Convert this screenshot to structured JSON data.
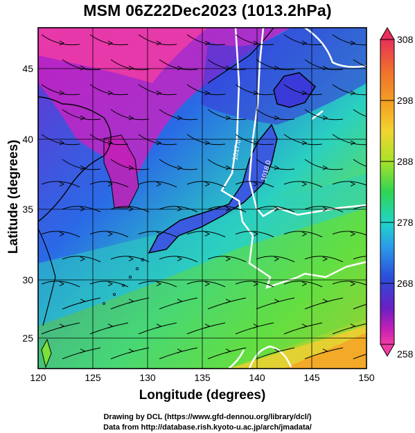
{
  "title": "MSM 06Z22Dec2023 (1013.2hPa)",
  "xlabel": "Longitude (degrees)",
  "ylabel": "Latitude  (degrees)",
  "x_ticks": [
    "120",
    "125",
    "130",
    "135",
    "140",
    "145",
    "150"
  ],
  "y_ticks": [
    "25",
    "30",
    "35",
    "40",
    "45"
  ],
  "colorbar": {
    "ticks": [
      "308",
      "298",
      "288",
      "278",
      "268",
      "258"
    ],
    "colors": [
      "#e8305a",
      "#f06e2e",
      "#f5a623",
      "#f2d431",
      "#a8e22a",
      "#2fd452",
      "#22d4c8",
      "#2a9bea",
      "#2a4ed8",
      "#6a1fc4",
      "#c41fb6",
      "#f03ca4"
    ]
  },
  "contour_labels": [
    "1017.0",
    "1018.0"
  ],
  "credits": {
    "line1": "Drawing by DCL (https://www.gfd-dennou.org/library/dcl/)",
    "line2": "Data from http://database.rish.kyoto-u.ac.jp/arch/jmadata/"
  }
}
